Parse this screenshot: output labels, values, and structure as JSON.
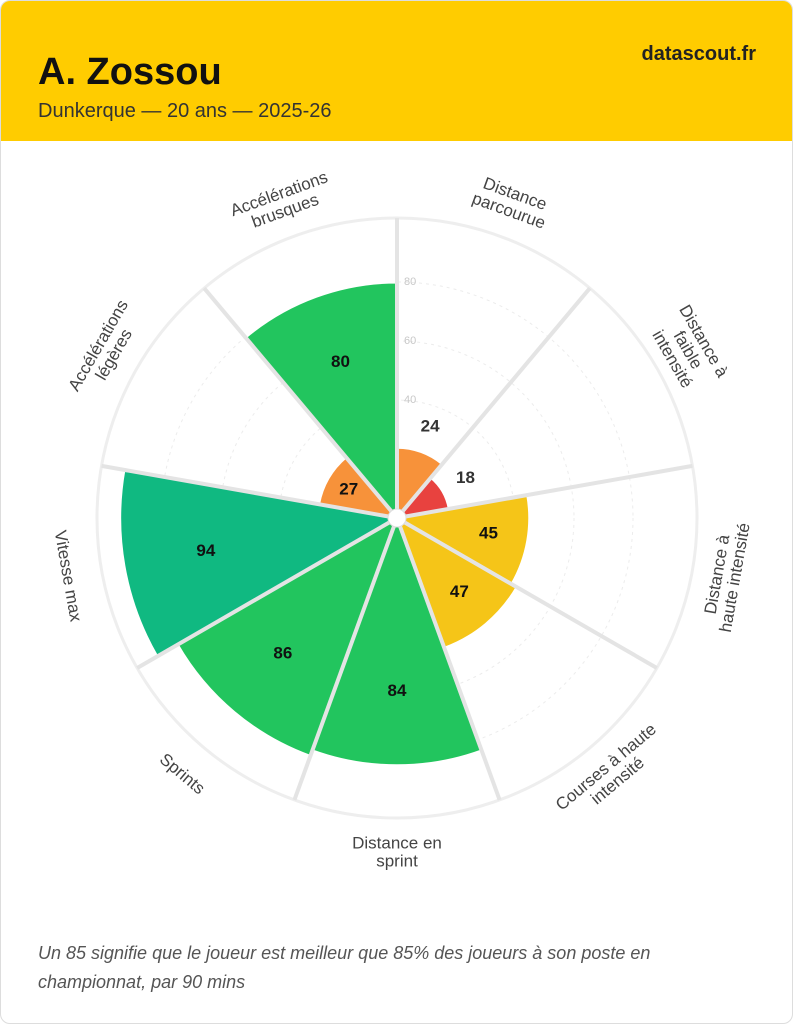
{
  "header": {
    "title": "A. Zossou",
    "subtitle": "Dunkerque — 20 ans — 2025-26",
    "brand": "datascout.fr"
  },
  "chart_data": {
    "type": "polar-bar",
    "categories": [
      [
        "Distance",
        "parcourue"
      ],
      [
        "Distance à",
        "faible",
        "intensité"
      ],
      [
        "Distance à",
        "haute intensité"
      ],
      [
        "Courses à haute",
        "intensité"
      ],
      [
        "Distance en",
        "sprint"
      ],
      [
        "Sprints"
      ],
      [
        "Vitesse max"
      ],
      [
        "Accélérations",
        "légères"
      ],
      [
        "Accélérations",
        "brusques"
      ]
    ],
    "values": [
      24,
      18,
      45,
      47,
      84,
      86,
      94,
      27,
      80
    ],
    "colors": [
      "#f7923a",
      "#e8423f",
      "#f5c518",
      "#f5c518",
      "#22c55e",
      "#22c55e",
      "#10b981",
      "#f7923a",
      "#22c55e"
    ],
    "ylim": [
      0,
      100
    ],
    "yticks": [
      40,
      60,
      80
    ],
    "grid": true
  },
  "footnote": "Un 85 signifie que le joueur est meilleur que 85% des joueurs à son poste en championnat, par 90 mins"
}
